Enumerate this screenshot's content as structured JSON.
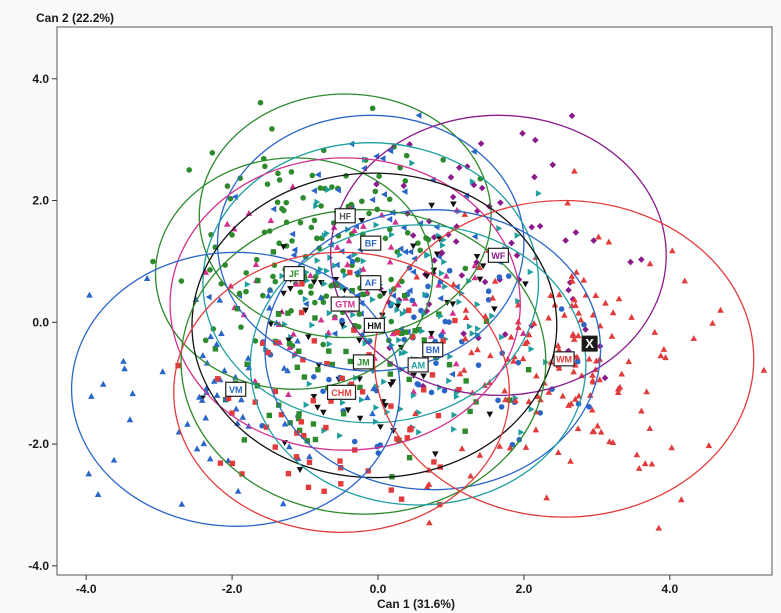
{
  "chart_data": {
    "type": "scatter",
    "title": "",
    "xlabel": "Can 1 (31.6%)",
    "ylabel": "Can 2 (22.2%)",
    "xlim": [
      -4.4,
      5.4
    ],
    "ylim": [
      -4.15,
      4.85
    ],
    "x_ticks": [
      -4.0,
      -2.0,
      0.0,
      2.0,
      4.0
    ],
    "x_tick_labels": [
      "-4.0",
      "-2.0",
      "0.0",
      "2.0",
      "4.0"
    ],
    "y_ticks": [
      4.0,
      2.0,
      0.0,
      -2.0,
      -4.0
    ],
    "y_tick_labels": [
      "4.0",
      "2.0",
      "0.0",
      "-2.0",
      "-4.0"
    ],
    "grid": false,
    "groups": [
      {
        "label": "HF",
        "cx": -0.45,
        "cy": 1.75,
        "r": 2.0,
        "color": "#2d8a2d",
        "marker": "circle",
        "text_color": "#555555"
      },
      {
        "label": "BF",
        "cx": -0.1,
        "cy": 1.3,
        "r": 2.1,
        "color": "#2a66c8",
        "marker": "tri-left",
        "text_color": "#2a66c8"
      },
      {
        "label": "WF",
        "cx": 1.65,
        "cy": 1.1,
        "r": 2.3,
        "color": "#8b1a8b",
        "marker": "diamond",
        "text_color": "#8b1a8b"
      },
      {
        "label": "JF",
        "cx": -1.15,
        "cy": 0.8,
        "r": 1.9,
        "color": "#2d8a2d",
        "marker": "circle",
        "text_color": "#2d8a2d"
      },
      {
        "label": "AF",
        "cx": -0.1,
        "cy": 0.65,
        "r": 2.3,
        "color": "#1f9ea0",
        "marker": "tri-right",
        "text_color": "#2a66c8"
      },
      {
        "label": "GTM",
        "cx": -0.45,
        "cy": 0.3,
        "r": 2.4,
        "color": "#d4308f",
        "marker": "tri-up",
        "text_color": "#d4308f"
      },
      {
        "label": "HM",
        "cx": -0.05,
        "cy": -0.05,
        "r": 2.5,
        "color": "#111111",
        "marker": "tri-down",
        "text_color": "#111111"
      },
      {
        "label": "BM",
        "cx": 0.75,
        "cy": -0.45,
        "r": 2.3,
        "color": "#2a66c8",
        "marker": "circle",
        "text_color": "#2a66c8"
      },
      {
        "label": "JM",
        "cx": -0.2,
        "cy": -0.65,
        "r": 2.5,
        "color": "#2d8a2d",
        "marker": "square",
        "text_color": "#2d8a2d"
      },
      {
        "label": "AM",
        "cx": 0.55,
        "cy": -0.7,
        "r": 2.3,
        "color": "#1f9ea0",
        "marker": "tri-right",
        "text_color": "#1f9ea0"
      },
      {
        "label": "WM",
        "cx": 2.55,
        "cy": -0.6,
        "r": 2.6,
        "color": "#e23b3b",
        "marker": "tri-up",
        "text_color": "#e23b3b"
      },
      {
        "label": "VM",
        "cx": -1.95,
        "cy": -1.1,
        "r": 2.25,
        "color": "#2a66c8",
        "marker": "tri-up",
        "text_color": "#2a66c8"
      },
      {
        "label": "CHM",
        "cx": -0.5,
        "cy": -1.15,
        "r": 2.3,
        "color": "#e23b3b",
        "marker": "square",
        "text_color": "#e23b3b"
      }
    ],
    "unknown_point": {
      "label": "X",
      "x": 2.9,
      "y": -0.35
    }
  }
}
